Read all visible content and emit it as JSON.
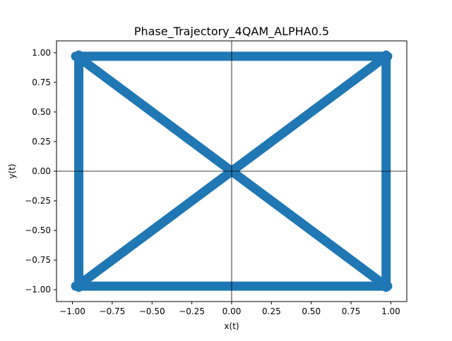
{
  "chart_data": {
    "type": "line",
    "title": "Phase_Trajectory_4QAM_ALPHA0.5",
    "xlabel": "x(t)",
    "ylabel": "y(t)",
    "xlim": [
      -1.1,
      1.1
    ],
    "ylim": [
      -1.1,
      1.1
    ],
    "xticks": [
      -1.0,
      -0.75,
      -0.5,
      -0.25,
      0.0,
      0.25,
      0.5,
      0.75,
      1.0
    ],
    "xtick_labels": [
      "−1.00",
      "−0.75",
      "−0.50",
      "−0.25",
      "0.00",
      "0.25",
      "0.50",
      "0.75",
      "1.00"
    ],
    "yticks": [
      -1.0,
      -0.75,
      -0.5,
      -0.25,
      0.0,
      0.25,
      0.5,
      0.75,
      1.0
    ],
    "ytick_labels": [
      "−1.00",
      "−0.75",
      "−0.50",
      "−0.25",
      "0.00",
      "0.25",
      "0.50",
      "0.75",
      "1.00"
    ],
    "grid": false,
    "reference_lines": {
      "x": 0,
      "y": 0,
      "color": "#000000"
    },
    "series": [
      {
        "color": "#1f77b4",
        "segments": [
          {
            "x": [
              -0.98,
              0.98
            ],
            "y": [
              0.97,
              0.97
            ]
          },
          {
            "x": [
              -0.98,
              0.98
            ],
            "y": [
              -0.97,
              -0.97
            ]
          },
          {
            "x": [
              -0.96,
              -0.96
            ],
            "y": [
              -0.98,
              0.98
            ]
          },
          {
            "x": [
              0.97,
              0.97
            ],
            "y": [
              -0.98,
              0.98
            ]
          },
          {
            "x": [
              -0.96,
              0.96
            ],
            "y": [
              0.96,
              -0.96
            ]
          },
          {
            "x": [
              -0.96,
              0.96
            ],
            "y": [
              -0.96,
              0.96
            ]
          }
        ]
      }
    ]
  }
}
